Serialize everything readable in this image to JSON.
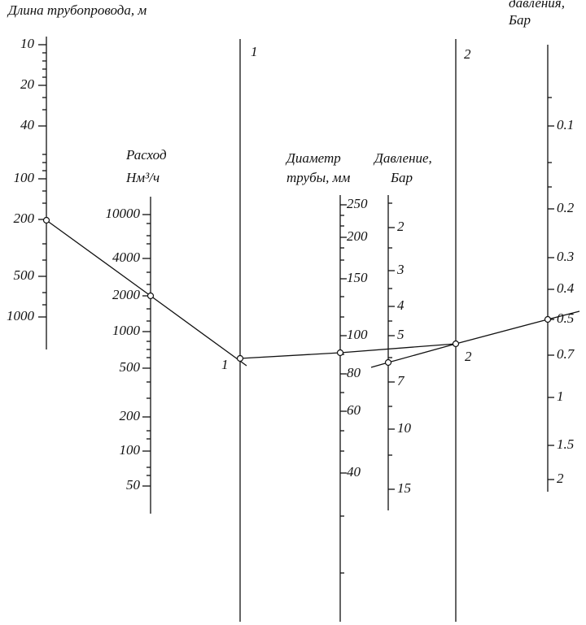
{
  "scales": [
    {
      "title": [
        "Длина трубопровода, м"
      ],
      "ticks": [
        "10",
        "20",
        "40",
        "100",
        "200",
        "500",
        "1000"
      ]
    },
    {
      "title": [
        "Расход",
        "Нм³/ч"
      ],
      "ticks": [
        "10000",
        "4000",
        "2000",
        "1000",
        "500",
        "200",
        "100",
        "50"
      ]
    },
    {
      "marks": [
        "1",
        "1"
      ]
    },
    {
      "title": [
        "Диаметр",
        "трубы, мм"
      ],
      "ticks": [
        "250",
        "200",
        "150",
        "100",
        "80",
        "60",
        "40"
      ]
    },
    {
      "title": [
        "Давление,",
        "Бар"
      ],
      "ticks": [
        "2",
        "3",
        "4",
        "5",
        "7",
        "10",
        "15"
      ]
    },
    {
      "marks": [
        "2",
        "2"
      ]
    },
    {
      "title": [
        "давления,",
        "Бар"
      ],
      "ticks": [
        "0.1",
        "0.2",
        "0.3",
        "0.4",
        "0.5",
        "0.7",
        "1",
        "1.5",
        "2"
      ]
    }
  ]
}
